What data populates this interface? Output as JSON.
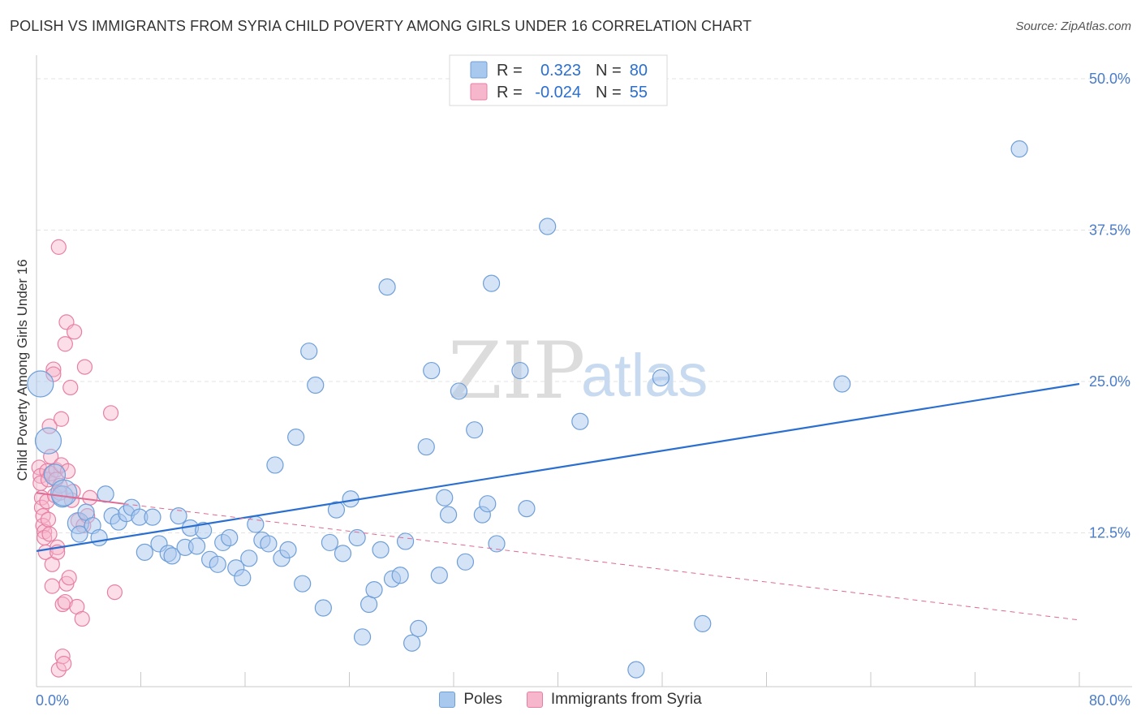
{
  "title": "POLISH VS IMMIGRANTS FROM SYRIA CHILD POVERTY AMONG GIRLS UNDER 16 CORRELATION CHART",
  "source": "Source: ZipAtlas.com",
  "watermark": {
    "zip": "ZIP",
    "atlas": "atlas"
  },
  "colors": {
    "blue_fill": "#a9c8ee",
    "blue_stroke": "#6f9fd8",
    "blue_line": "#2a6fd0",
    "pink_fill": "#f6b6cb",
    "pink_stroke": "#e87fa3",
    "pink_line": "#e06a93",
    "tick_text": "#4a7cc8"
  },
  "legend": {
    "rows": [
      {
        "r_label": "R =",
        "r_value": "0.323",
        "n_label": "N =",
        "n_value": "80"
      },
      {
        "r_label": "R =",
        "r_value": "-0.024",
        "n_label": "N =",
        "n_value": "55"
      }
    ]
  },
  "chart_data": {
    "type": "scatter",
    "title": "POLISH VS IMMIGRANTS FROM SYRIA CHILD POVERTY AMONG GIRLS UNDER 16 CORRELATION CHART",
    "xlabel": "",
    "ylabel": "Child Poverty Among Girls Under 16",
    "xlim": [
      0,
      80
    ],
    "ylim": [
      0,
      50
    ],
    "x_tick_labels": [
      "0.0%",
      "80.0%"
    ],
    "y_ticks": [
      12.5,
      25.0,
      37.5,
      50.0
    ],
    "y_tick_labels": [
      "12.5%",
      "25.0%",
      "37.5%",
      "50.0%"
    ],
    "grid": true,
    "legend_position": "bottom-center",
    "series": [
      {
        "name": "Poles",
        "color": "#a9c8ee",
        "r": 0.323,
        "n": 80,
        "trend": {
          "x": [
            0,
            80
          ],
          "y": [
            11.0,
            24.8
          ]
        },
        "points": [
          [
            0.3,
            24.8,
            16
          ],
          [
            0.9,
            20.1,
            16
          ],
          [
            1.4,
            17.3,
            13
          ],
          [
            2.0,
            15.5,
            13
          ],
          [
            2.1,
            15.8,
            16
          ],
          [
            3.2,
            13.3,
            13
          ],
          [
            3.3,
            12.4,
            10
          ],
          [
            3.8,
            14.2,
            10
          ],
          [
            4.3,
            13.1,
            10
          ],
          [
            4.8,
            12.1,
            10
          ],
          [
            5.3,
            15.7,
            10
          ],
          [
            5.8,
            13.9,
            10
          ],
          [
            6.3,
            13.4,
            10
          ],
          [
            6.9,
            14.1,
            10
          ],
          [
            7.3,
            14.6,
            10
          ],
          [
            7.9,
            13.8,
            10
          ],
          [
            8.3,
            10.9,
            10
          ],
          [
            8.9,
            13.8,
            10
          ],
          [
            9.4,
            11.6,
            10
          ],
          [
            10.1,
            10.8,
            10
          ],
          [
            10.4,
            10.6,
            10
          ],
          [
            10.9,
            13.9,
            10
          ],
          [
            11.4,
            11.3,
            10
          ],
          [
            11.8,
            12.9,
            10
          ],
          [
            12.3,
            11.4,
            10
          ],
          [
            12.8,
            12.7,
            10
          ],
          [
            13.3,
            10.3,
            10
          ],
          [
            13.9,
            9.9,
            10
          ],
          [
            14.3,
            11.7,
            10
          ],
          [
            14.8,
            12.1,
            10
          ],
          [
            15.3,
            9.6,
            10
          ],
          [
            15.8,
            8.8,
            10
          ],
          [
            16.3,
            10.4,
            10
          ],
          [
            16.8,
            13.2,
            10
          ],
          [
            17.3,
            11.9,
            10
          ],
          [
            17.8,
            11.6,
            10
          ],
          [
            18.3,
            18.1,
            10
          ],
          [
            18.8,
            10.4,
            10
          ],
          [
            19.3,
            11.1,
            10
          ],
          [
            19.9,
            20.4,
            10
          ],
          [
            20.4,
            8.3,
            10
          ],
          [
            20.9,
            27.5,
            10
          ],
          [
            21.4,
            24.7,
            10
          ],
          [
            22.0,
            6.3,
            10
          ],
          [
            22.5,
            11.7,
            10
          ],
          [
            23.0,
            14.4,
            10
          ],
          [
            23.5,
            10.8,
            10
          ],
          [
            24.1,
            15.3,
            10
          ],
          [
            24.6,
            12.1,
            10
          ],
          [
            25.0,
            3.9,
            10
          ],
          [
            25.5,
            6.6,
            10
          ],
          [
            25.9,
            7.8,
            10
          ],
          [
            26.4,
            11.1,
            10
          ],
          [
            26.9,
            32.8,
            10
          ],
          [
            27.3,
            8.7,
            10
          ],
          [
            27.9,
            9.0,
            10
          ],
          [
            28.3,
            11.8,
            10
          ],
          [
            28.8,
            3.4,
            10
          ],
          [
            29.3,
            4.6,
            10
          ],
          [
            29.9,
            19.6,
            10
          ],
          [
            30.3,
            25.9,
            10
          ],
          [
            30.9,
            9.0,
            10
          ],
          [
            31.3,
            15.4,
            10
          ],
          [
            31.6,
            14.0,
            10
          ],
          [
            32.4,
            24.2,
            10
          ],
          [
            32.9,
            10.1,
            10
          ],
          [
            33.6,
            21.0,
            10
          ],
          [
            34.2,
            14.0,
            10
          ],
          [
            34.6,
            14.9,
            10
          ],
          [
            34.9,
            33.1,
            10
          ],
          [
            35.3,
            11.6,
            10
          ],
          [
            37.1,
            25.9,
            10
          ],
          [
            37.6,
            14.5,
            10
          ],
          [
            39.2,
            37.8,
            10
          ],
          [
            41.7,
            21.7,
            10
          ],
          [
            46.0,
            1.2,
            10
          ],
          [
            47.9,
            25.3,
            10
          ],
          [
            51.1,
            5.0,
            10
          ],
          [
            61.8,
            24.8,
            10
          ],
          [
            75.4,
            44.2,
            10
          ]
        ]
      },
      {
        "name": "Immigrants from Syria",
        "color": "#f6b6cb",
        "r": -0.024,
        "n": 55,
        "trend_solid": {
          "x": [
            0,
            6.7
          ],
          "y": [
            15.8,
            14.9
          ]
        },
        "trend_dashed": {
          "x": [
            6.7,
            80
          ],
          "y": [
            14.9,
            5.3
          ]
        },
        "points": [
          [
            0.2,
            17.9,
            9
          ],
          [
            0.3,
            17.2,
            9
          ],
          [
            0.3,
            16.6,
            9
          ],
          [
            0.4,
            15.4,
            9
          ],
          [
            0.4,
            14.6,
            9
          ],
          [
            0.5,
            13.9,
            9
          ],
          [
            0.5,
            13.1,
            9
          ],
          [
            0.6,
            12.6,
            9
          ],
          [
            0.6,
            12.1,
            9
          ],
          [
            0.7,
            10.9,
            9
          ],
          [
            0.8,
            17.6,
            9
          ],
          [
            0.8,
            15.1,
            9
          ],
          [
            0.9,
            16.9,
            9
          ],
          [
            0.9,
            13.6,
            9
          ],
          [
            1.0,
            12.4,
            9
          ],
          [
            1.0,
            21.3,
            9
          ],
          [
            1.1,
            18.8,
            9
          ],
          [
            1.1,
            17.4,
            9
          ],
          [
            1.2,
            9.9,
            9
          ],
          [
            1.2,
            8.1,
            9
          ],
          [
            1.3,
            26.0,
            9
          ],
          [
            1.3,
            25.6,
            9
          ],
          [
            1.4,
            15.6,
            9
          ],
          [
            1.5,
            17.7,
            9
          ],
          [
            1.5,
            16.9,
            9
          ],
          [
            1.6,
            11.3,
            9
          ],
          [
            1.6,
            10.9,
            9
          ],
          [
            1.7,
            36.1,
            9
          ],
          [
            1.7,
            1.2,
            9
          ],
          [
            1.8,
            16.4,
            9
          ],
          [
            1.8,
            15.8,
            9
          ],
          [
            1.9,
            18.1,
            9
          ],
          [
            1.9,
            21.9,
            9
          ],
          [
            2.0,
            6.6,
            9
          ],
          [
            2.0,
            2.3,
            9
          ],
          [
            2.1,
            1.7,
            9
          ],
          [
            2.2,
            28.1,
            9
          ],
          [
            2.2,
            6.8,
            9
          ],
          [
            2.3,
            29.9,
            9
          ],
          [
            2.3,
            8.3,
            9
          ],
          [
            2.4,
            17.6,
            9
          ],
          [
            2.5,
            8.8,
            9
          ],
          [
            2.6,
            24.5,
            9
          ],
          [
            2.7,
            15.2,
            9
          ],
          [
            2.8,
            15.9,
            9
          ],
          [
            2.9,
            29.1,
            9
          ],
          [
            3.1,
            6.4,
            9
          ],
          [
            3.2,
            13.5,
            9
          ],
          [
            3.5,
            5.4,
            9
          ],
          [
            3.6,
            13.1,
            9
          ],
          [
            3.7,
            26.2,
            9
          ],
          [
            3.9,
            13.9,
            9
          ],
          [
            4.1,
            15.4,
            9
          ],
          [
            5.7,
            22.4,
            9
          ],
          [
            6.0,
            7.6,
            9
          ]
        ]
      }
    ]
  }
}
